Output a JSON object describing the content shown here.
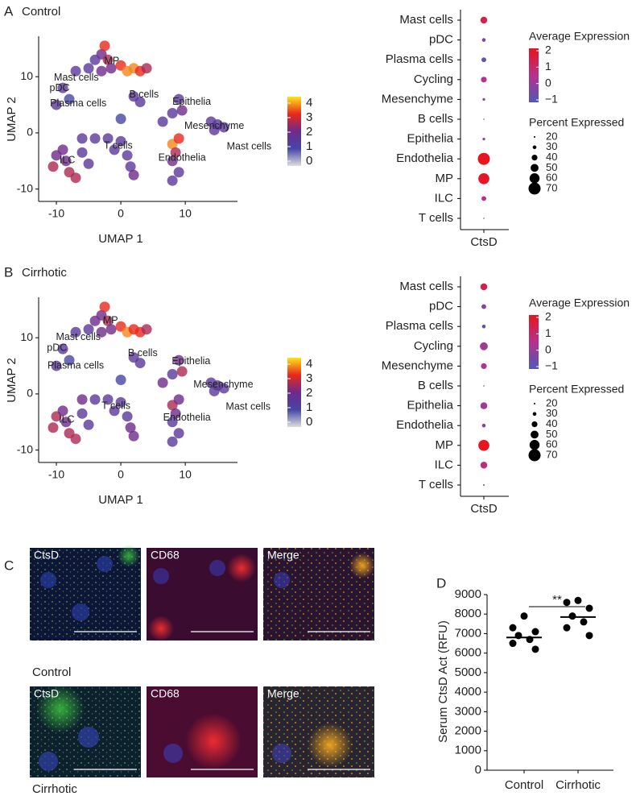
{
  "panel_letters": [
    "A",
    "B",
    "C",
    "D"
  ],
  "chart_data": [
    {
      "type": "umap",
      "title": "Control",
      "xlabel": "UMAP 1",
      "ylabel": "UMAP 2",
      "xlim": [
        -12.75,
        18.1
      ],
      "ylim": [
        -12.2,
        17.2
      ],
      "xticks": [
        -10,
        0,
        10
      ],
      "yticks": [
        -10,
        0,
        10
      ],
      "x": [
        -3,
        -2.5,
        -2,
        -1.5,
        0,
        1,
        2,
        3,
        4,
        -3,
        -5,
        -7,
        -4,
        -9,
        -8,
        -10,
        2,
        3,
        0,
        9,
        8,
        6.5,
        9.5,
        14,
        15,
        14.5,
        16,
        8,
        9,
        8.5,
        8,
        9,
        8,
        -6,
        -4,
        -2,
        0,
        -1,
        1,
        1.5,
        2,
        -10,
        -10.5,
        -8.5,
        -9,
        -8,
        -7,
        -6,
        -5
      ],
      "y": [
        14,
        15.5,
        13,
        11.5,
        12,
        11,
        11.5,
        11,
        11.5,
        11,
        11.5,
        11,
        13,
        8,
        6,
        5,
        6.5,
        5.5,
        2.5,
        6,
        3.5,
        2,
        4,
        2,
        1.5,
        0.5,
        1,
        -2,
        -1,
        -3.5,
        -5,
        -7,
        -8.5,
        -1,
        -1,
        -1,
        -1.5,
        -3,
        -4,
        -6,
        -7.5,
        -4,
        -6,
        -5,
        -3,
        -7,
        -8,
        -3.5,
        -5.5
      ],
      "values": [
        2,
        3,
        2.5,
        2,
        3,
        3.5,
        3.5,
        3,
        2.5,
        2,
        1.5,
        1.5,
        1.5,
        1.5,
        1,
        1.5,
        1.5,
        1.5,
        1,
        1.5,
        1.5,
        1.5,
        2,
        1.5,
        1.5,
        1.5,
        1.5,
        3.5,
        3,
        2.5,
        2,
        1.5,
        1.5,
        1.5,
        1.5,
        1.5,
        1.5,
        1.5,
        1.5,
        1.5,
        2,
        2,
        2.5,
        2,
        2,
        2.5,
        2.5,
        1.5,
        1.5
      ],
      "colorscale": [
        "#dedede",
        "#4646a6",
        "#6e2a8a",
        "#e8281c",
        "#ffe41a"
      ],
      "clim": [
        0,
        4
      ],
      "cticks": [
        0,
        1,
        2,
        3,
        4
      ],
      "annotations": [
        {
          "text": "MP",
          "x": -1.4,
          "y": 12.7
        },
        {
          "text": "Mast cells",
          "x": -6.9,
          "y": 9.8
        },
        {
          "text": "pDC",
          "x": -9.5,
          "y": 7.9
        },
        {
          "text": "Plasma cells",
          "x": -6.6,
          "y": 5.2
        },
        {
          "text": "B cells",
          "x": 3.6,
          "y": 6.8
        },
        {
          "text": "Epithelia",
          "x": 11,
          "y": 5.5
        },
        {
          "text": "Mesenchyme",
          "x": 14.5,
          "y": 1.2
        },
        {
          "text": "Mast cells",
          "x": 19.9,
          "y": -2.5
        },
        {
          "text": "T cells",
          "x": -0.4,
          "y": -2.3
        },
        {
          "text": "ILC",
          "x": -8.3,
          "y": -4.9
        },
        {
          "text": "Endothelia",
          "x": 9.5,
          "y": -4.5
        }
      ]
    },
    {
      "type": "dot",
      "x_category": "CtsD",
      "categories": [
        "Mast cells",
        "pDC",
        "Plasma cells",
        "Cycling",
        "Mesenchyme",
        "B cells",
        "Epithelia",
        "Endothelia",
        "MP",
        "ILC",
        "T cells"
      ],
      "values": [
        1.3,
        -0.3,
        -0.7,
        0.5,
        -0.4,
        -1,
        -0.3,
        2,
        1.9,
        0.6,
        -0.8
      ],
      "sizes": [
        45,
        30,
        35,
        40,
        25,
        10,
        25,
        70,
        65,
        35,
        18
      ],
      "color_title": "Average Expression",
      "colorscale": [
        "#4f58b8",
        "#b5318c",
        "#e8141e"
      ],
      "clim": [
        -1,
        2
      ],
      "cticks": [
        {
          "value": 2,
          "label": "2"
        },
        {
          "value": 1,
          "label": "1"
        },
        {
          "value": 0,
          "label": "0"
        },
        {
          "value": -1,
          "label": "−1"
        }
      ],
      "size_title": "Percent Expressed",
      "size_ticks": [
        20,
        30,
        40,
        50,
        60,
        70
      ]
    },
    {
      "type": "umap",
      "title": "Cirrhotic",
      "xlabel": "UMAP 1",
      "ylabel": "UMAP 2",
      "xlim": [
        -12.75,
        18.1
      ],
      "ylim": [
        -12.2,
        17.2
      ],
      "xticks": [
        -10,
        0,
        10
      ],
      "yticks": [
        -10,
        0,
        10
      ],
      "x": [
        -3,
        -2.5,
        -2,
        -1.5,
        0,
        1,
        2,
        3,
        4,
        -3,
        -5,
        -7,
        -4,
        -9,
        -8,
        -10,
        2,
        3,
        0,
        9,
        8,
        6.5,
        9.5,
        14,
        15,
        14.5,
        16,
        8,
        9,
        8.5,
        8,
        9,
        8,
        -6,
        -4,
        -2,
        0,
        -1,
        1,
        1.5,
        2,
        -10,
        -10.5,
        -8.5,
        -9,
        -8,
        -7,
        -6,
        -5
      ],
      "y": [
        14,
        15.5,
        13,
        11.5,
        12,
        11,
        11.5,
        11,
        11.5,
        11,
        11.5,
        11,
        13,
        8,
        6,
        5,
        6.5,
        5.5,
        2.5,
        6,
        3.5,
        2,
        4,
        2,
        1.5,
        0.5,
        1,
        -2,
        -1,
        -3.5,
        -5,
        -7,
        -8.5,
        -1,
        -1,
        -1,
        -1.5,
        -3,
        -4,
        -6,
        -7.5,
        -4,
        -6,
        -5,
        -3,
        -7,
        -8,
        -3.5,
        -5.5
      ],
      "values": [
        2,
        3,
        2.5,
        2,
        3,
        3.5,
        3,
        3,
        2.5,
        2,
        1.5,
        1.5,
        2,
        1.5,
        1,
        1.5,
        1.5,
        1.5,
        1,
        2,
        1.5,
        2,
        2.5,
        1.5,
        1.5,
        1.5,
        1.5,
        2.5,
        2,
        2,
        1.5,
        1.5,
        1.5,
        2,
        1.5,
        1.5,
        1.5,
        1.5,
        1.5,
        2,
        2,
        2.5,
        2.5,
        2,
        2,
        2.5,
        2.5,
        1.5,
        1.5
      ],
      "colorscale": [
        "#dedede",
        "#4646a6",
        "#6e2a8a",
        "#e8281c",
        "#ffe41a"
      ],
      "clim": [
        0,
        4
      ],
      "cticks": [
        0,
        1,
        2,
        3,
        4
      ],
      "annotations": [
        {
          "text": "MP",
          "x": -1.6,
          "y": 13
        },
        {
          "text": "Mast cells",
          "x": -6.6,
          "y": 10.1
        },
        {
          "text": "pDC",
          "x": -9.9,
          "y": 8.1
        },
        {
          "text": "Plasma cells",
          "x": -7,
          "y": 5
        },
        {
          "text": "B cells",
          "x": 3.4,
          "y": 7.2
        },
        {
          "text": "Epithelia",
          "x": 10.9,
          "y": 5.8
        },
        {
          "text": "Mesenchyme",
          "x": 15.9,
          "y": 1.6
        },
        {
          "text": "Mast cells",
          "x": 19.75,
          "y": -2.3
        },
        {
          "text": "T cells",
          "x": -0.75,
          "y": -2.2
        },
        {
          "text": "ILC",
          "x": -8.4,
          "y": -4.6
        },
        {
          "text": "Endothelia",
          "x": 10.25,
          "y": -4.3
        }
      ]
    },
    {
      "type": "dot",
      "x_category": "CtsD",
      "categories": [
        "Mast cells",
        "pDC",
        "Plasma cells",
        "Cycling",
        "Mesenchyme",
        "B cells",
        "Epithelia",
        "Endothelia",
        "MP",
        "ILC",
        "T cells"
      ],
      "values": [
        1.4,
        -0.2,
        -0.8,
        0.2,
        0.4,
        -1,
        0.2,
        -0.3,
        2,
        0.8,
        -0.6
      ],
      "sizes": [
        45,
        35,
        30,
        50,
        40,
        8,
        45,
        30,
        65,
        45,
        20
      ],
      "color_title": "Average Expression",
      "colorscale": [
        "#4f58b8",
        "#b5318c",
        "#e8141e"
      ],
      "clim": [
        -1,
        2
      ],
      "cticks": [
        {
          "value": 2,
          "label": "2"
        },
        {
          "value": 1,
          "label": "1"
        },
        {
          "value": 0,
          "label": "0"
        },
        {
          "value": -1,
          "label": "−1"
        }
      ],
      "size_title": "Percent Expressed",
      "size_ticks": [
        20,
        30,
        40,
        50,
        60,
        70
      ]
    },
    {
      "type": "strip",
      "ylabel": "Serum CtsD Act  (RFU)",
      "categories": [
        "Control",
        "Cirrhotic"
      ],
      "series": [
        {
          "values": [
            7900,
            7300,
            7100,
            6900,
            6700,
            6500,
            6200
          ],
          "center": 6800
        },
        {
          "values": [
            8700,
            8600,
            8300,
            7900,
            7600,
            7300,
            6900
          ],
          "center": 7850
        }
      ],
      "color": "#000000",
      "ylim": [
        0,
        9000
      ],
      "yticks": [
        0,
        1000,
        2000,
        3000,
        4000,
        5000,
        6000,
        7000,
        8000,
        9000
      ],
      "significance": "**"
    }
  ],
  "microscopy": {
    "channels": [
      "CtsD",
      "CD68",
      "Merge"
    ],
    "rows": [
      "Control",
      "Cirrhotic"
    ]
  }
}
